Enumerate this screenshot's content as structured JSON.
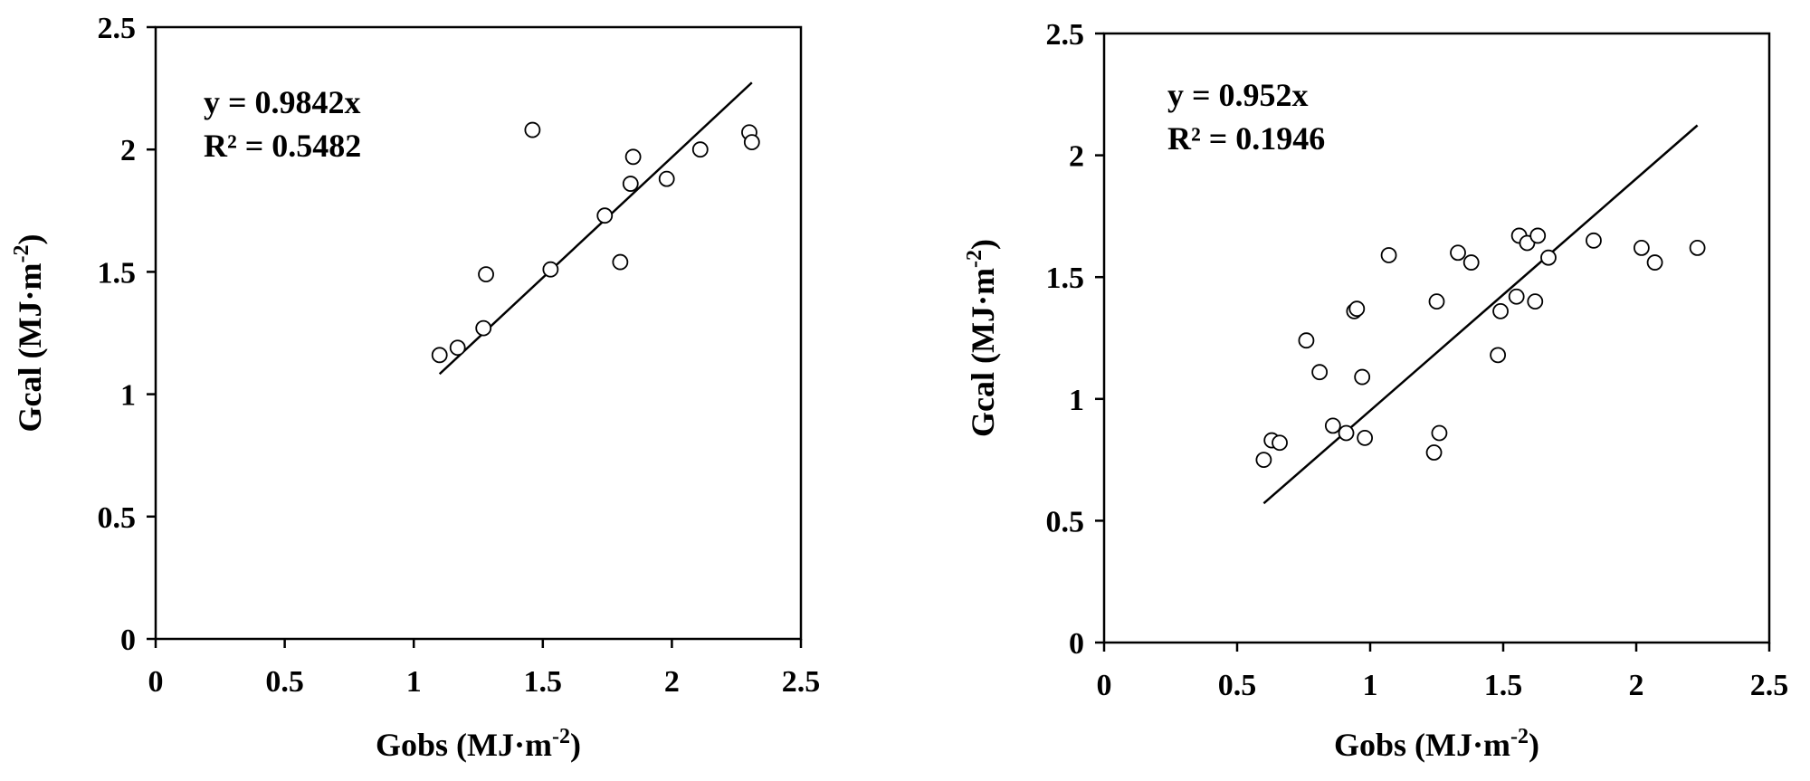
{
  "chart_data": [
    {
      "type": "scatter",
      "xlabel": "Gobs (MJ·m",
      "xlabel_sup": "-2",
      "xlabel_end": ")",
      "ylabel": "Gcal (MJ·m",
      "ylabel_sup": "-2",
      "ylabel_end": ")",
      "xlim": [
        0,
        2.5
      ],
      "ylim": [
        0,
        2.5
      ],
      "xticks": [
        "0",
        "0.5",
        "1",
        "1.5",
        "2",
        "2.5"
      ],
      "yticks": [
        "0",
        "0.5",
        "1",
        "1.5",
        "2",
        "2.5"
      ],
      "grid": false,
      "equation": "y = 0.9842x",
      "r2": "R² = 0.5482",
      "trendline": {
        "slope": 0.9842,
        "x_range": [
          1.1,
          2.31
        ]
      },
      "points": [
        [
          1.1,
          1.16
        ],
        [
          1.17,
          1.19
        ],
        [
          1.27,
          1.27
        ],
        [
          1.28,
          1.49
        ],
        [
          1.46,
          2.08
        ],
        [
          1.53,
          1.51
        ],
        [
          1.74,
          1.73
        ],
        [
          1.8,
          1.54
        ],
        [
          1.84,
          1.86
        ],
        [
          1.85,
          1.97
        ],
        [
          1.98,
          1.88
        ],
        [
          2.11,
          2.0
        ],
        [
          2.3,
          2.07
        ],
        [
          2.31,
          2.03
        ]
      ]
    },
    {
      "type": "scatter",
      "xlabel": "Gobs (MJ·m",
      "xlabel_sup": "-2",
      "xlabel_end": ")",
      "ylabel": "Gcal (MJ·m",
      "ylabel_sup": "-2",
      "ylabel_end": ")",
      "xlim": [
        0,
        2.5
      ],
      "ylim": [
        0,
        2.5
      ],
      "xticks": [
        "0",
        "0.5",
        "1",
        "1.5",
        "2",
        "2.5"
      ],
      "yticks": [
        "0",
        "0.5",
        "1",
        "1.5",
        "2",
        "2.5"
      ],
      "grid": false,
      "equation": "y = 0.952x",
      "r2": "R² = 0.1946",
      "trendline": {
        "slope": 0.952,
        "x_range": [
          0.6,
          2.23
        ]
      },
      "points": [
        [
          0.6,
          0.75
        ],
        [
          0.63,
          0.83
        ],
        [
          0.66,
          0.82
        ],
        [
          0.76,
          1.24
        ],
        [
          0.81,
          1.11
        ],
        [
          0.86,
          0.89
        ],
        [
          0.91,
          0.86
        ],
        [
          0.94,
          1.36
        ],
        [
          0.95,
          1.37
        ],
        [
          0.97,
          1.09
        ],
        [
          0.98,
          0.84
        ],
        [
          1.07,
          1.59
        ],
        [
          1.24,
          0.78
        ],
        [
          1.25,
          1.4
        ],
        [
          1.26,
          0.86
        ],
        [
          1.33,
          1.6
        ],
        [
          1.38,
          1.56
        ],
        [
          1.48,
          1.18
        ],
        [
          1.49,
          1.36
        ],
        [
          1.55,
          1.42
        ],
        [
          1.56,
          1.67
        ],
        [
          1.59,
          1.64
        ],
        [
          1.62,
          1.4
        ],
        [
          1.63,
          1.67
        ],
        [
          1.67,
          1.58
        ],
        [
          1.84,
          1.65
        ],
        [
          2.02,
          1.62
        ],
        [
          2.07,
          1.56
        ],
        [
          2.23,
          1.62
        ]
      ]
    }
  ]
}
